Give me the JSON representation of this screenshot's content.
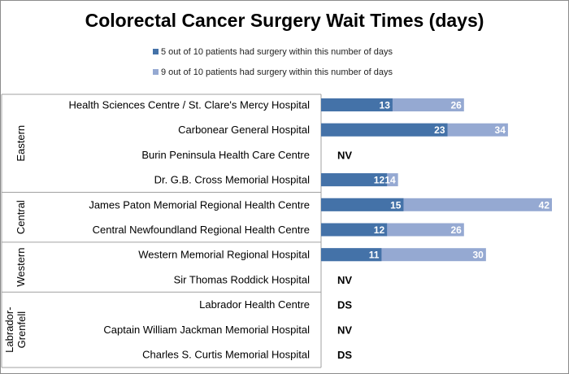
{
  "chart_data": {
    "type": "bar",
    "orientation": "horizontal",
    "title": "Colorectal Cancer Surgery Wait Times (days)",
    "legend_position": "top",
    "grid": false,
    "xlim": [
      0,
      42
    ],
    "groups": [
      {
        "name": "Eastern",
        "categories": [
          "Health Sciences Centre / St. Clare's Mercy Hospital",
          "Carbonear General Hospital",
          "Burin Peninsula Health Care Centre",
          "Dr. G.B. Cross Memorial Hospital"
        ]
      },
      {
        "name": "Central",
        "categories": [
          "James Paton Memorial Regional Health Centre",
          "Central Newfoundland Regional Health Centre"
        ]
      },
      {
        "name": "Western",
        "categories": [
          "Western Memorial Regional Hospital",
          "Sir Thomas Roddick Hospital"
        ]
      },
      {
        "name": "Labrador-Grenfell",
        "categories": [
          "Labrador Health Centre",
          "Captain William Jackman Memorial Hospital",
          "Charles S. Curtis Memorial Hospital"
        ]
      }
    ],
    "categories": [
      "Health Sciences Centre / St. Clare's Mercy Hospital",
      "Carbonear General Hospital",
      "Burin Peninsula Health Care Centre",
      "Dr. G.B. Cross Memorial Hospital",
      "James Paton Memorial Regional Health Centre",
      "Central Newfoundland Regional Health Centre",
      "Western Memorial Regional Hospital",
      "Sir Thomas Roddick Hospital",
      "Labrador Health Centre",
      "Captain William Jackman Memorial Hospital",
      "Charles S. Curtis Memorial Hospital"
    ],
    "series": [
      {
        "name": "5 out of 10 patients had surgery within this number of days",
        "color": "#4472a8",
        "values": [
          13,
          23,
          null,
          12,
          15,
          12,
          11,
          null,
          null,
          null,
          null
        ]
      },
      {
        "name": "9 out of 10 patients had surgery within this number of days",
        "color": "#95a9d2",
        "values": [
          26,
          34,
          null,
          14,
          42,
          26,
          30,
          null,
          null,
          null,
          null
        ]
      }
    ],
    "missing_labels": [
      null,
      null,
      "NV",
      null,
      null,
      null,
      null,
      "NV",
      "DS",
      "NV",
      "DS"
    ]
  }
}
